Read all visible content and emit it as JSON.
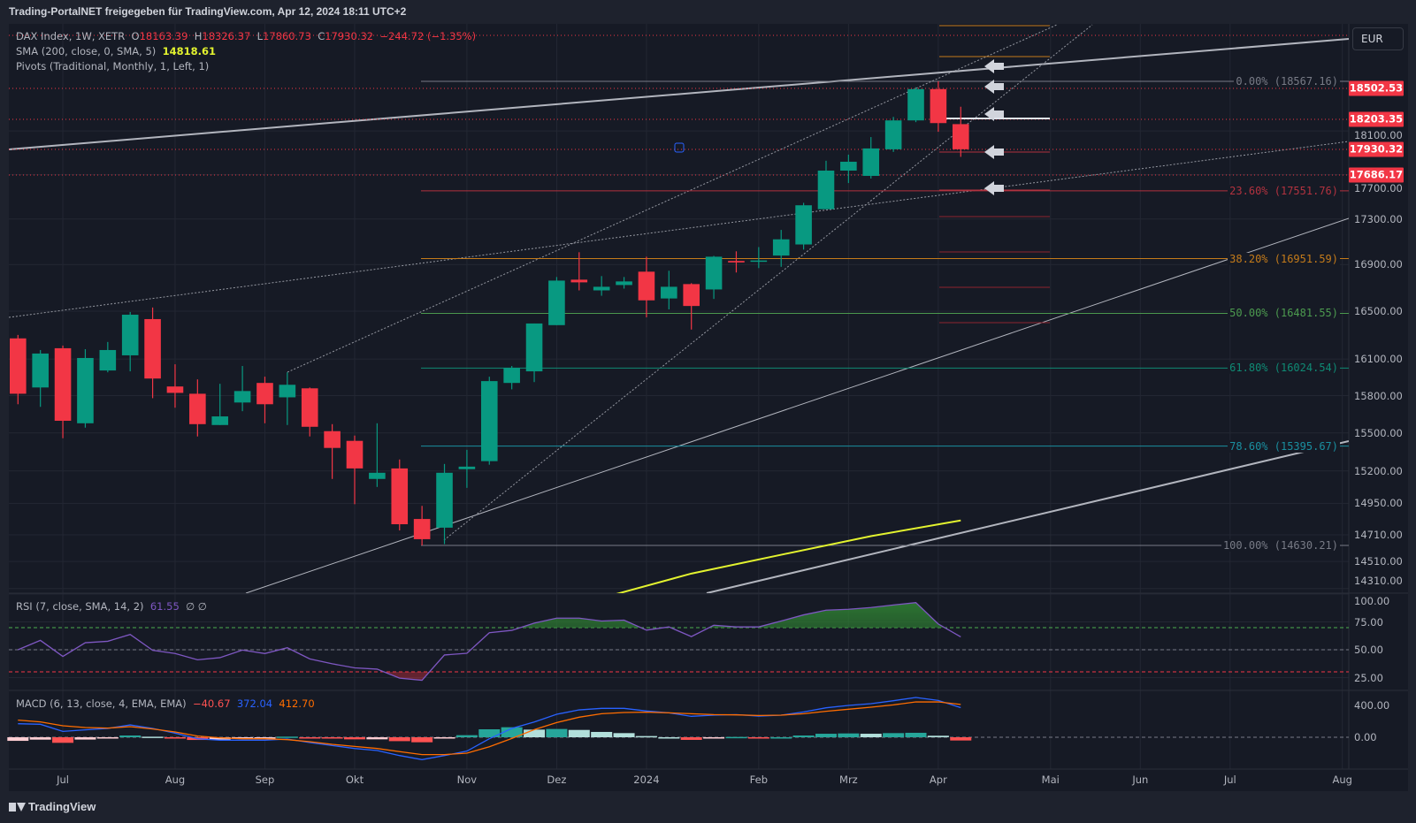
{
  "title": "Trading-PortalNET freigegeben für TradingView.com, Apr 12, 2024 18:11 UTC+2",
  "legend": {
    "symbol": "DAX Index, 1W, XETR",
    "o_label": "O",
    "o": "18163.39",
    "h_label": "H",
    "h": "18326.37",
    "l_label": "L",
    "l": "17860.73",
    "c_label": "C",
    "c": "17930.32",
    "change": "−244.72 (−1.35%)",
    "sma": "SMA (200, close, 0, SMA, 5)",
    "sma_value": "14818.61",
    "pivots": "Pivots (Traditional, Monthly, 1, Left, 1)",
    "rsi": "RSI (7, close, SMA, 14, 2)",
    "rsi_value": "61.55",
    "rsi_extra": "∅ ∅",
    "macd": "MACD (6, 13, close, 4, EMA, EMA)",
    "macd_hist": "−40.67",
    "macd_value": "372.04",
    "macd_signal": "412.70"
  },
  "currency": "EUR",
  "footer": "TradingView",
  "colors": {
    "up": "#089981",
    "down": "#f23645",
    "sma": "#e3f32f",
    "rsi": "#7e57c2",
    "macd": "#2962ff",
    "signal": "#ff6d00"
  },
  "chart_data": {
    "type": "candlestick",
    "price_axis": [
      "18100.00",
      "17700.00",
      "17300.00",
      "16900.00",
      "16500.00",
      "16100.00",
      "15800.00",
      "15500.00",
      "15200.00",
      "14950.00",
      "14710.00",
      "14510.00",
      "14310.00"
    ],
    "price_labels": [
      "18502.53",
      "18203.35",
      "17930.32",
      "17686.17"
    ],
    "time_axis": [
      {
        "label": "Jul",
        "week": 2
      },
      {
        "label": "Aug",
        "week": 7
      },
      {
        "label": "Sep",
        "week": 11
      },
      {
        "label": "Okt",
        "week": 15
      },
      {
        "label": "Nov",
        "week": 20
      },
      {
        "label": "Dez",
        "week": 24
      },
      {
        "label": "2024",
        "week": 28
      },
      {
        "label": "Feb",
        "week": 33
      },
      {
        "label": "Mrz",
        "week": 37
      },
      {
        "label": "Apr",
        "week": 41
      },
      {
        "label": "Mai",
        "week": 46
      },
      {
        "label": "Jun",
        "week": 50
      },
      {
        "label": "Jul",
        "week": 54
      },
      {
        "label": "Aug",
        "week": 59
      }
    ],
    "candles": [
      [
        16271,
        16300,
        15730,
        15815
      ],
      [
        15866,
        16174,
        15709,
        16145
      ],
      [
        16189,
        16211,
        15458,
        15597
      ],
      [
        15577,
        16181,
        15542,
        16108
      ],
      [
        16005,
        16241,
        15990,
        16174
      ],
      [
        16130,
        16493,
        15998,
        16470
      ],
      [
        16433,
        16531,
        15779,
        15939
      ],
      [
        15874,
        16056,
        15702,
        15822
      ],
      [
        15815,
        15932,
        15472,
        15570
      ],
      [
        15563,
        15896,
        15563,
        15632
      ],
      [
        15744,
        16042,
        15674,
        15837
      ],
      [
        15903,
        15954,
        15577,
        15730
      ],
      [
        15786,
        15990,
        15563,
        15888
      ],
      [
        15859,
        15866,
        15472,
        15549
      ],
      [
        15514,
        15570,
        15138,
        15381
      ],
      [
        15437,
        15479,
        14943,
        15220
      ],
      [
        15138,
        15577,
        15076,
        15186
      ],
      [
        15220,
        15290,
        14743,
        14790
      ],
      [
        14830,
        14930,
        14630,
        14677
      ],
      [
        14764,
        15255,
        14640,
        15186
      ],
      [
        15214,
        15366,
        15069,
        15234
      ],
      [
        15277,
        15954,
        15249,
        15918
      ],
      [
        15903,
        16042,
        15851,
        16027
      ],
      [
        15998,
        16396,
        15910,
        16396
      ],
      [
        16382,
        16792,
        16382,
        16761
      ],
      [
        16769,
        17007,
        16677,
        16746
      ],
      [
        16677,
        16800,
        16631,
        16708
      ],
      [
        16723,
        16792,
        16692,
        16754
      ],
      [
        16838,
        16968,
        16448,
        16592
      ],
      [
        16608,
        16846,
        16515,
        16708
      ],
      [
        16731,
        16739,
        16345,
        16544
      ],
      [
        16685,
        16975,
        16604,
        16968
      ],
      [
        16931,
        17015,
        16831,
        16918
      ],
      [
        16925,
        17052,
        16869,
        16935
      ],
      [
        16978,
        17203,
        16880,
        17120
      ],
      [
        17075,
        17444,
        17030,
        17422
      ],
      [
        17387,
        17825,
        17387,
        17735
      ],
      [
        17735,
        17881,
        17622,
        17816
      ],
      [
        17687,
        18043,
        17663,
        17938
      ],
      [
        17930,
        18231,
        17906,
        18198
      ],
      [
        18198,
        18510,
        18182,
        18493
      ],
      [
        18493,
        18567,
        18092,
        18173
      ],
      [
        18163.39,
        18326.37,
        17860.73,
        17930.32
      ]
    ],
    "sma200": [
      {
        "i": 26,
        "v": 14240
      },
      {
        "i": 30,
        "v": 14420
      },
      {
        "i": 34,
        "v": 14560
      },
      {
        "i": 38,
        "v": 14700
      },
      {
        "i": 42,
        "v": 14818.61
      }
    ],
    "fib": [
      {
        "label": "0.00% (18567.16)",
        "price": 18567.16,
        "color": "#787b86"
      },
      {
        "label": "23.60% (17551.76)",
        "price": 17551.76,
        "color": "#b2323f"
      },
      {
        "label": "38.20% (16951.59)",
        "price": 16951.59,
        "color": "#c47b1a"
      },
      {
        "label": "50.00% (16481.55)",
        "price": 16481.55,
        "color": "#4c9a4f"
      },
      {
        "label": "61.80% (16024.54)",
        "price": 16024.54,
        "color": "#0f8a74"
      },
      {
        "label": "78.60% (15395.67)",
        "price": 15395.67,
        "color": "#1a8fa0"
      },
      {
        "label": "100.00% (14630.21)",
        "price": 14630.21,
        "color": "#787b86"
      }
    ],
    "rsi": {
      "axis": [
        "100.00",
        "75.00",
        "50.00",
        "25.00"
      ],
      "upper": 70,
      "lower": 30,
      "values": [
        50,
        58.4,
        44,
        56.3,
        57.6,
        63.7,
        49.5,
        46.6,
        41,
        42.9,
        49.7,
        46.6,
        51.8,
        41.8,
        37.4,
        33.7,
        32.6,
        24.5,
        22.6,
        45.3,
        46.8,
        65.3,
        67.4,
        73.9,
        78.4,
        78.4,
        75.8,
        76.6,
        67.6,
        70.5,
        61.8,
        72,
        70.5,
        70.5,
        75.8,
        81.3,
        85.5,
        86.3,
        87.9,
        90.2,
        92.3,
        73.1,
        61.55
      ]
    },
    "macd": {
      "axis": [
        "400.00",
        "0.00"
      ],
      "macd": [
        170,
        163,
        74,
        93,
        111,
        155,
        111,
        52,
        -19,
        -37,
        -37,
        -37,
        -22,
        -67,
        -104,
        -141,
        -167,
        -230,
        -281,
        -230,
        -174,
        -19,
        111,
        192,
        289,
        344,
        363,
        363,
        330,
        307,
        263,
        278,
        285,
        266,
        278,
        318,
        370,
        400,
        422,
        459,
        500,
        463,
        372.04
      ],
      "signal": [
        215,
        193,
        144,
        122,
        115,
        133,
        104,
        67,
        15,
        -7,
        -19,
        -19,
        -30,
        -56,
        -89,
        -115,
        -141,
        -181,
        -218,
        -218,
        -200,
        -119,
        -15,
        96,
        185,
        252,
        296,
        311,
        315,
        307,
        296,
        285,
        281,
        274,
        278,
        296,
        326,
        352,
        378,
        407,
        444,
        444,
        412.7
      ],
      "hist": [
        -45,
        -30,
        -70,
        -29,
        -4,
        22,
        7,
        -15,
        -34,
        -30,
        -18,
        -18,
        8,
        -11,
        -15,
        -26,
        -26,
        -49,
        -63,
        -12,
        26,
        100,
        126,
        96,
        104,
        92,
        67,
        52,
        15,
        0,
        -33,
        -7,
        4,
        -8,
        0,
        22,
        44,
        48,
        44,
        52,
        56,
        19,
        -40.67
      ]
    }
  }
}
